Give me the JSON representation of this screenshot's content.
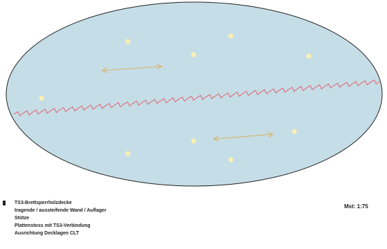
{
  "plan": {
    "slab_fill": "#c5dde6",
    "slab_stroke": "#222222",
    "support_color": "#fbefb0",
    "joint_color": "#e0636e",
    "direction_color": "#d9b46a",
    "supports": [
      {
        "id": "s1"
      },
      {
        "id": "s2"
      },
      {
        "id": "s3"
      },
      {
        "id": "s4"
      },
      {
        "id": "s5"
      },
      {
        "id": "s6"
      },
      {
        "id": "s7"
      },
      {
        "id": "s8"
      },
      {
        "id": "s9"
      }
    ],
    "direction_arrows": [
      {
        "id": "upper",
        "icon": "double-arrow-icon"
      },
      {
        "id": "lower",
        "icon": "double-arrow-icon"
      }
    ]
  },
  "legend": {
    "items": [
      {
        "label": "TS3-Brettsperrholzdecke",
        "icon": "slab-swatch"
      },
      {
        "label": "tragende / aussteifende Wand / Auflager",
        "icon": "wall-swatch"
      },
      {
        "label": "Stütze",
        "icon": "support-swatch"
      },
      {
        "label": "Plattenstoss mit TS3-Verbindung",
        "icon": "joint-swatch"
      },
      {
        "label": "Ausrichtung Decklagen CLT",
        "icon": "direction-swatch"
      }
    ]
  },
  "scale": {
    "label": "Mst: 1:75"
  }
}
